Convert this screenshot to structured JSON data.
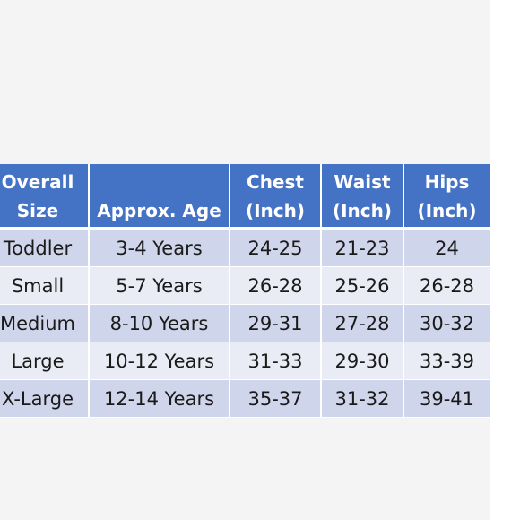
{
  "size_chart": {
    "headers": [
      {
        "line1": "Overall",
        "line2": "Size"
      },
      {
        "line1": "",
        "line2": "Approx. Age"
      },
      {
        "line1": "Chest",
        "line2": "(Inch)"
      },
      {
        "line1": "Waist",
        "line2": "(Inch)"
      },
      {
        "line1": "Hips",
        "line2": "(Inch)"
      }
    ],
    "rows": [
      {
        "size": "Toddler",
        "age": "3-4 Years",
        "chest": "24-25",
        "waist": "21-23",
        "hips": "24"
      },
      {
        "size": "Small",
        "age": "5-7 Years",
        "chest": "26-28",
        "waist": "25-26",
        "hips": "26-28"
      },
      {
        "size": "Medium",
        "age": "8-10 Years",
        "chest": "29-31",
        "waist": "27-28",
        "hips": "30-32"
      },
      {
        "size": "Large",
        "age": "10-12 Years",
        "chest": "31-33",
        "waist": "29-30",
        "hips": "33-39"
      },
      {
        "size": "X-Large",
        "age": "12-14 Years",
        "chest": "35-37",
        "waist": "31-32",
        "hips": "39-41"
      }
    ],
    "colors": {
      "header_bg": "#4472c4",
      "row_odd_bg": "#cfd5ea",
      "row_even_bg": "#e9ebf5",
      "page_bg": "#f4f4f5"
    }
  }
}
